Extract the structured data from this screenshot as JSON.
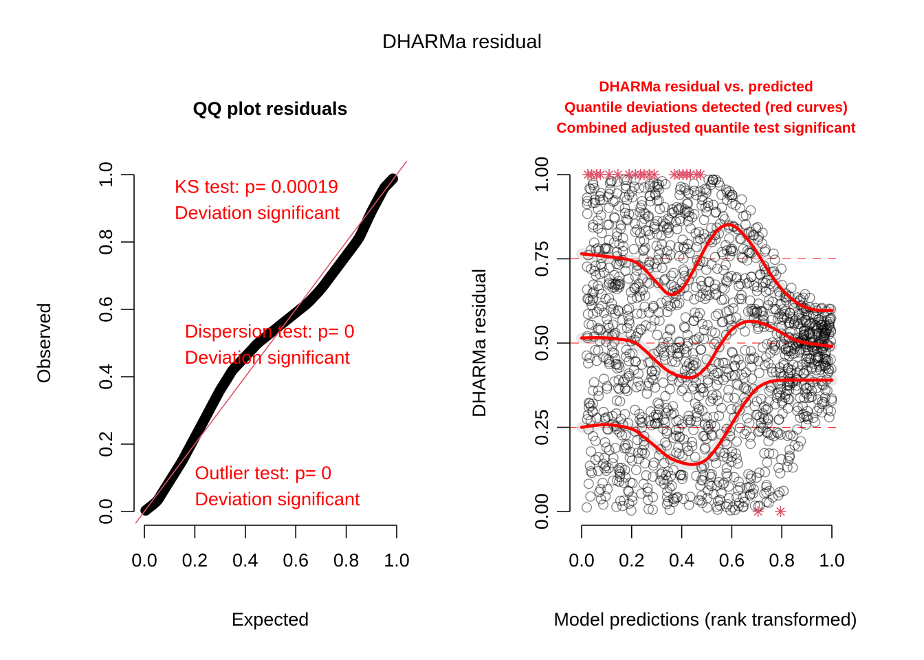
{
  "figure": {
    "title": "DHARMa residual"
  },
  "chart_data": [
    {
      "type": "scatter",
      "title": "QQ plot residuals",
      "xlabel": "Expected",
      "ylabel": "Observed",
      "xlim": [
        0,
        1
      ],
      "ylim": [
        0,
        1
      ],
      "xticks": [
        0.0,
        0.2,
        0.4,
        0.6,
        0.8,
        1.0
      ],
      "xtick_labels": [
        "0.0",
        "0.2",
        "0.4",
        "0.6",
        "0.8",
        "1.0"
      ],
      "yticks": [
        0.0,
        0.2,
        0.4,
        0.6,
        0.8,
        1.0
      ],
      "ytick_labels": [
        "0.0",
        "0.2",
        "0.4",
        "0.6",
        "0.8",
        "1.0"
      ],
      "grid": false,
      "reference_line": {
        "intercept": 0,
        "slope": 1,
        "color": "#DF536B"
      },
      "qq_curve": {
        "expected": [
          0.0,
          0.05,
          0.1,
          0.15,
          0.2,
          0.25,
          0.3,
          0.35,
          0.4,
          0.45,
          0.5,
          0.55,
          0.6,
          0.65,
          0.7,
          0.75,
          0.8,
          0.85,
          0.9,
          0.95,
          1.0
        ],
        "observed": [
          0.0,
          0.03,
          0.09,
          0.15,
          0.22,
          0.29,
          0.36,
          0.42,
          0.46,
          0.5,
          0.53,
          0.56,
          0.59,
          0.62,
          0.66,
          0.71,
          0.76,
          0.81,
          0.89,
          0.96,
          1.0
        ]
      },
      "annotations": [
        {
          "lines": [
            "KS test: p= 0.00019",
            "Deviation  significant"
          ],
          "x": 0.12,
          "y": 0.93
        },
        {
          "lines": [
            "Dispersion test: p= 0",
            "Deviation  significant"
          ],
          "x": 0.16,
          "y": 0.5
        },
        {
          "lines": [
            "Outlier test: p= 0",
            "Deviation  significant"
          ],
          "x": 0.2,
          "y": 0.08
        }
      ],
      "annotation_color": "#FF0000"
    },
    {
      "type": "scatter",
      "title_lines": [
        "DHARMa residual vs. predicted",
        "Quantile deviations detected (red curves)",
        "Combined adjusted quantile test significant"
      ],
      "title_color": "#FF0000",
      "xlabel": "Model predictions (rank transformed)",
      "ylabel": "DHARMa residual",
      "xlim": [
        0,
        1
      ],
      "ylim": [
        0,
        1
      ],
      "xticks": [
        0.0,
        0.2,
        0.4,
        0.6,
        0.8,
        1.0
      ],
      "xtick_labels": [
        "0.0",
        "0.2",
        "0.4",
        "0.6",
        "0.8",
        "1.0"
      ],
      "yticks": [
        0.0,
        0.25,
        0.5,
        0.75,
        1.0
      ],
      "ytick_labels": [
        "0.00",
        "0.25",
        "0.50",
        "0.75",
        "1.00"
      ],
      "grid": false,
      "reference_lines": [
        0.25,
        0.5,
        0.75
      ],
      "n_points": 1500,
      "point_envelope": {
        "x": [
          0.0,
          0.1,
          0.2,
          0.3,
          0.4,
          0.5,
          0.55,
          0.6,
          0.7,
          0.8,
          0.9,
          1.0
        ],
        "upper": [
          1.0,
          1.0,
          1.0,
          1.0,
          1.0,
          1.0,
          1.0,
          0.97,
          0.87,
          0.72,
          0.64,
          0.61
        ],
        "lower": [
          0.0,
          0.0,
          0.0,
          0.0,
          0.0,
          0.0,
          0.0,
          0.0,
          0.0,
          0.02,
          0.25,
          0.28
        ]
      },
      "quantile_curves": [
        {
          "quantile": 0.75,
          "x": [
            0.0,
            0.1,
            0.2,
            0.25,
            0.3,
            0.35,
            0.4,
            0.45,
            0.5,
            0.55,
            0.6,
            0.65,
            0.7,
            0.75,
            0.8,
            0.85,
            0.9,
            0.95,
            1.0
          ],
          "y": [
            0.765,
            0.757,
            0.745,
            0.72,
            0.68,
            0.645,
            0.66,
            0.72,
            0.79,
            0.84,
            0.85,
            0.82,
            0.77,
            0.71,
            0.66,
            0.625,
            0.605,
            0.597,
            0.597
          ]
        },
        {
          "quantile": 0.5,
          "x": [
            0.0,
            0.1,
            0.2,
            0.25,
            0.3,
            0.35,
            0.4,
            0.45,
            0.5,
            0.55,
            0.6,
            0.65,
            0.7,
            0.75,
            0.8,
            0.85,
            0.9,
            0.95,
            1.0
          ],
          "y": [
            0.515,
            0.515,
            0.505,
            0.48,
            0.445,
            0.415,
            0.4,
            0.4,
            0.43,
            0.49,
            0.54,
            0.562,
            0.563,
            0.55,
            0.53,
            0.51,
            0.5,
            0.495,
            0.49
          ],
          "note": ""
        },
        {
          "quantile": 0.25,
          "x": [
            0.0,
            0.1,
            0.2,
            0.25,
            0.3,
            0.35,
            0.4,
            0.45,
            0.5,
            0.55,
            0.6,
            0.65,
            0.7,
            0.75,
            0.8,
            0.85,
            0.9,
            0.95,
            1.0
          ],
          "y": [
            0.25,
            0.258,
            0.245,
            0.22,
            0.19,
            0.16,
            0.145,
            0.14,
            0.155,
            0.2,
            0.26,
            0.32,
            0.365,
            0.385,
            0.39,
            0.39,
            0.39,
            0.39,
            0.39
          ]
        }
      ],
      "outliers": [
        {
          "x": 0.025,
          "y": 1.0
        },
        {
          "x": 0.04,
          "y": 1.0
        },
        {
          "x": 0.06,
          "y": 1.0
        },
        {
          "x": 0.075,
          "y": 1.0
        },
        {
          "x": 0.11,
          "y": 1.0
        },
        {
          "x": 0.145,
          "y": 1.0
        },
        {
          "x": 0.19,
          "y": 1.0
        },
        {
          "x": 0.215,
          "y": 1.0
        },
        {
          "x": 0.235,
          "y": 1.0
        },
        {
          "x": 0.25,
          "y": 1.0
        },
        {
          "x": 0.27,
          "y": 1.0
        },
        {
          "x": 0.29,
          "y": 1.0
        },
        {
          "x": 0.37,
          "y": 1.0
        },
        {
          "x": 0.39,
          "y": 1.0
        },
        {
          "x": 0.405,
          "y": 1.0
        },
        {
          "x": 0.42,
          "y": 1.0
        },
        {
          "x": 0.435,
          "y": 1.0
        },
        {
          "x": 0.46,
          "y": 1.0
        },
        {
          "x": 0.475,
          "y": 1.0
        },
        {
          "x": 0.705,
          "y": 0.0
        },
        {
          "x": 0.795,
          "y": 0.0
        }
      ],
      "colors": {
        "points": "#000000",
        "curves": "#FF0000",
        "reference": "#FF0000",
        "outliers": "#DF536B",
        "band": "#D9D9D9"
      }
    }
  ]
}
